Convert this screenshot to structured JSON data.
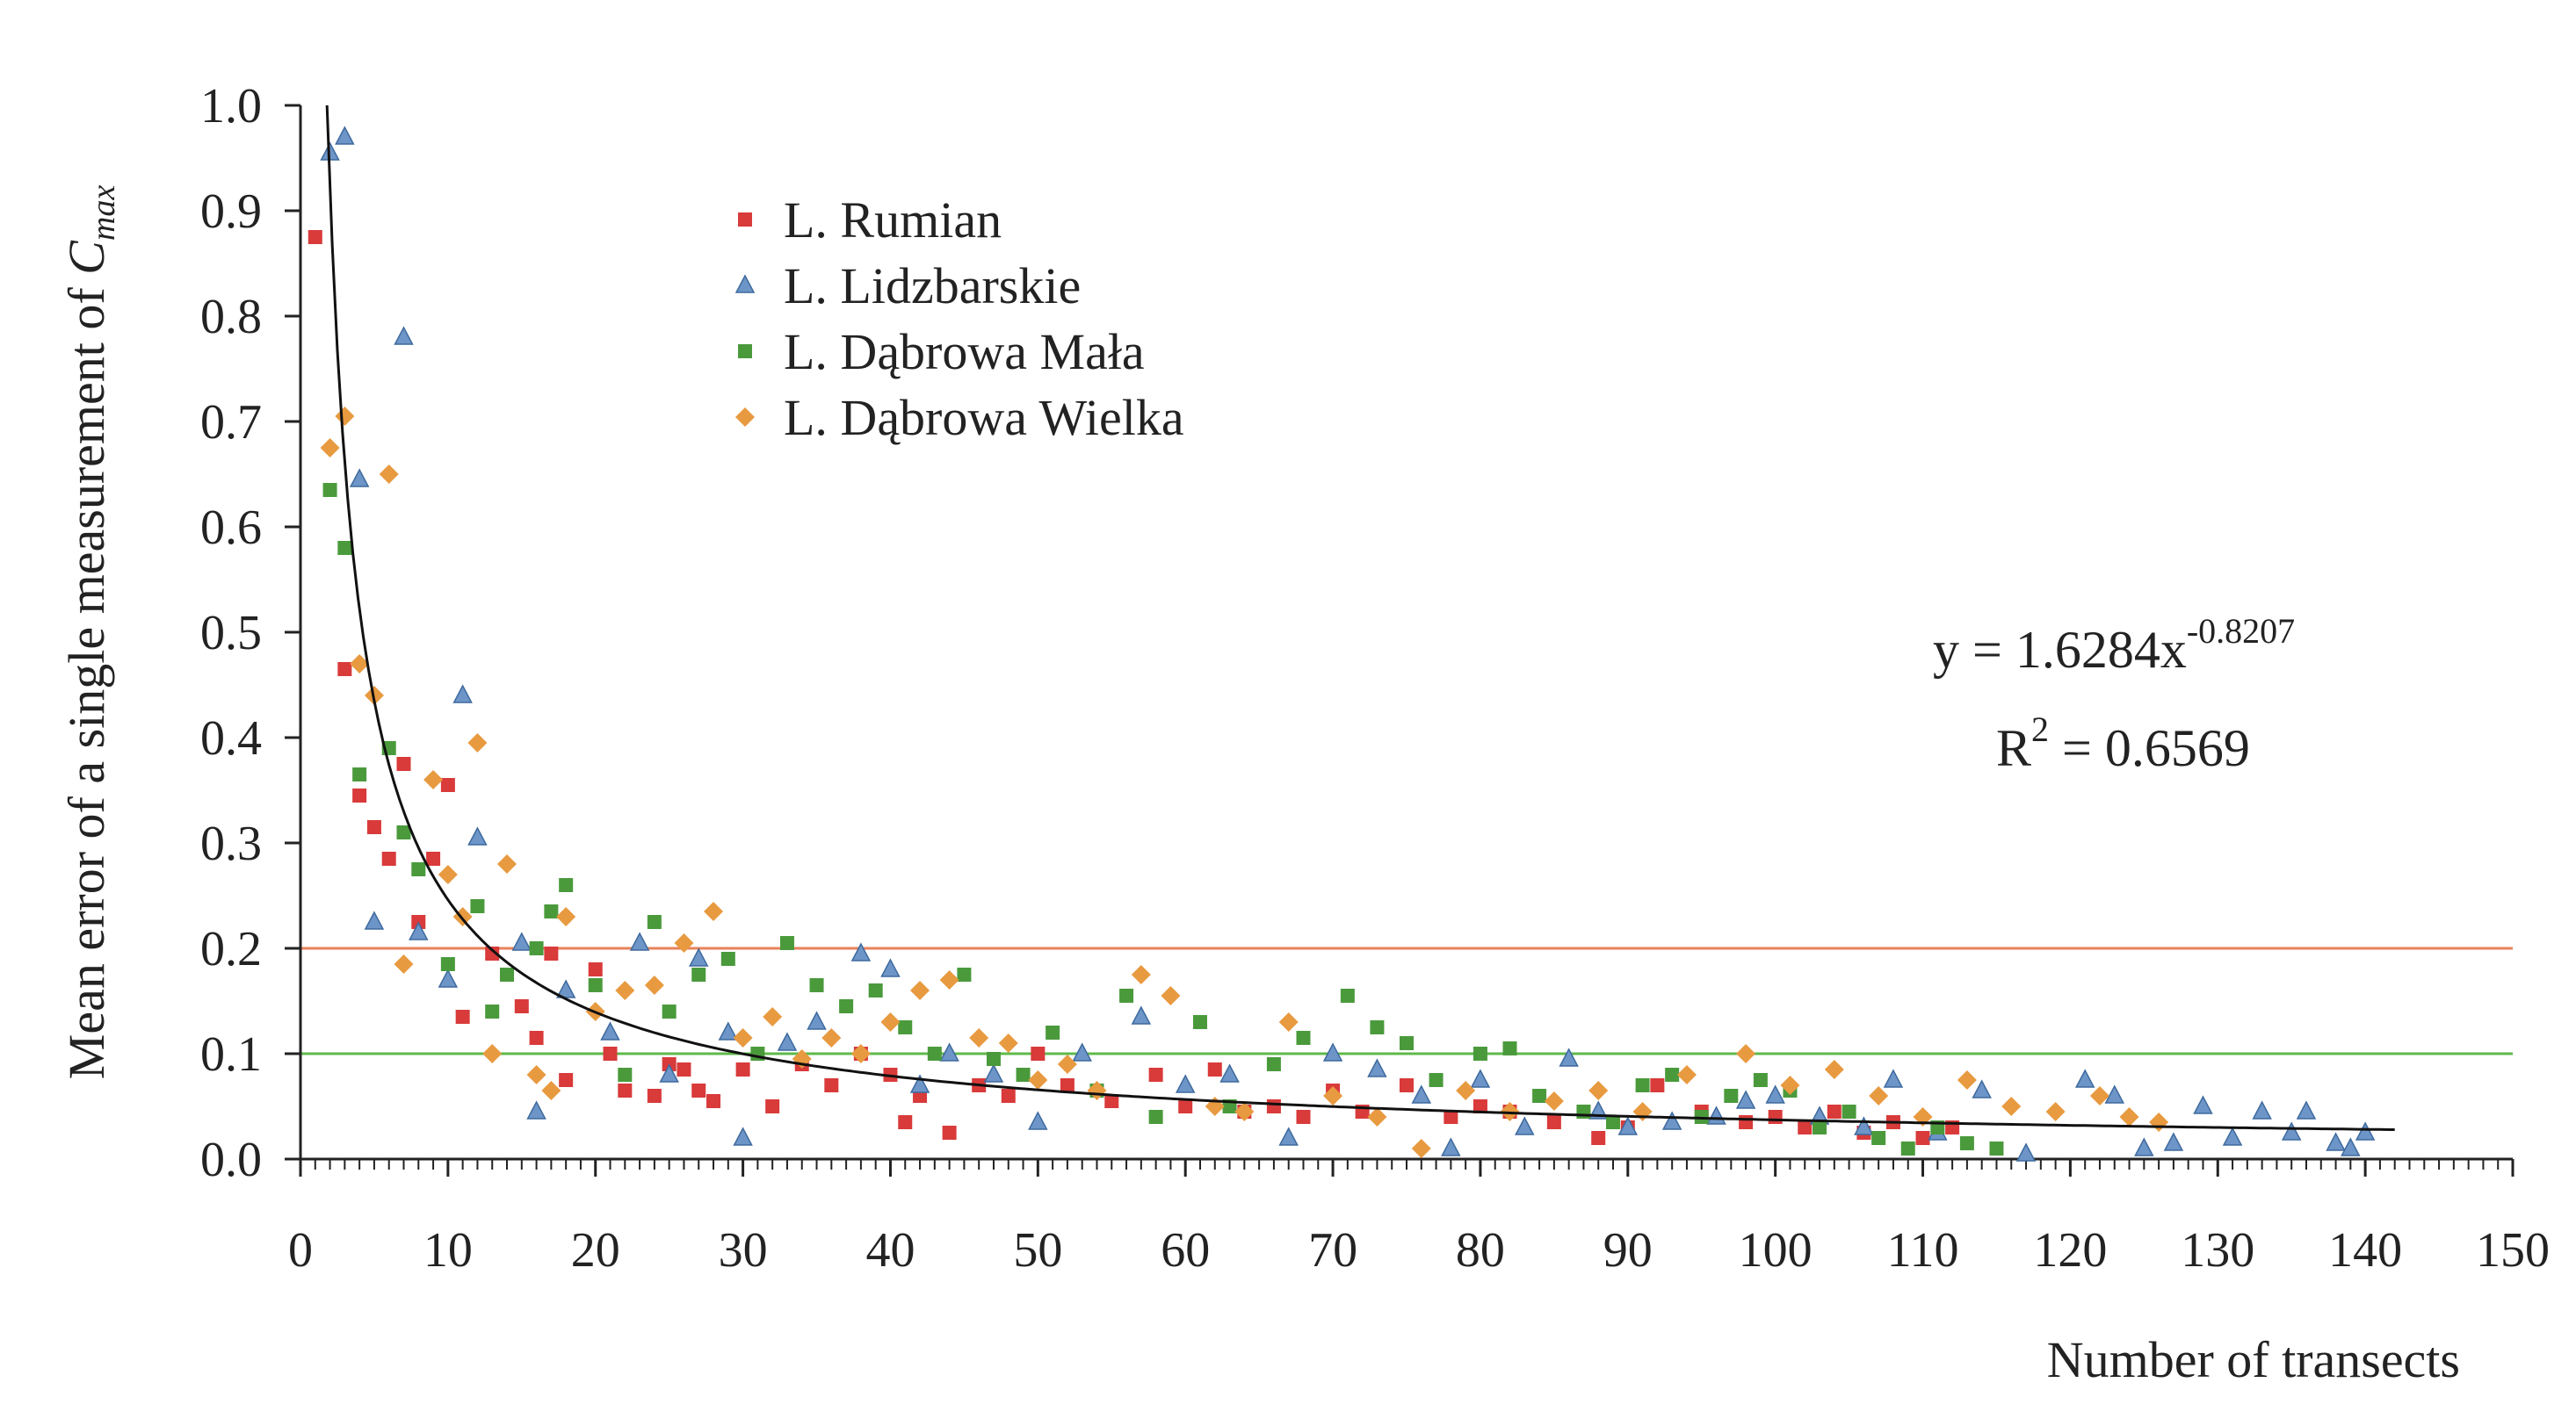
{
  "chart_data": {
    "type": "scatter",
    "title": "",
    "xlabel": "Number of transects",
    "ylabel_prefix": "Mean error of a single measurement of ",
    "ylabel_symbol": "C",
    "ylabel_subscript": "max",
    "xlim": [
      0,
      150
    ],
    "ylim": [
      0,
      1.0
    ],
    "xticks": [
      0,
      10,
      20,
      30,
      40,
      50,
      60,
      70,
      80,
      90,
      100,
      110,
      120,
      130,
      140,
      150
    ],
    "yticks": [
      "0.0",
      "0.1",
      "0.2",
      "0.3",
      "0.4",
      "0.5",
      "0.6",
      "0.7",
      "0.8",
      "0.9",
      "1.0"
    ],
    "reference_lines": [
      {
        "y": 0.2,
        "color": "#e8825a"
      },
      {
        "y": 0.1,
        "color": "#5fb84a"
      }
    ],
    "fit": {
      "coefficient": 1.6284,
      "exponent": -0.8207,
      "x_range": [
        1.8,
        142
      ],
      "color": "#111111"
    },
    "equation": {
      "lhs": "y = 1.6284x",
      "exponent": "-0.8207",
      "r_lhs": "R",
      "r_sup": "2",
      "r_rhs": " = 0.6569"
    },
    "series": [
      {
        "name": "L. Rumian",
        "marker": "square",
        "color": "#d93a3a",
        "x": [
          1,
          3,
          4,
          5,
          6,
          7,
          8,
          9,
          10,
          11,
          13,
          15,
          16,
          17,
          18,
          20,
          21,
          22,
          24,
          25,
          26,
          27,
          28,
          30,
          32,
          34,
          36,
          38,
          40,
          41,
          42,
          44,
          46,
          48,
          50,
          52,
          55,
          58,
          60,
          62,
          64,
          66,
          68,
          70,
          72,
          75,
          78,
          80,
          82,
          85,
          88,
          90,
          92,
          95,
          98,
          100,
          102,
          104,
          106,
          108,
          110,
          112
        ],
        "y": [
          0.875,
          0.465,
          0.345,
          0.315,
          0.285,
          0.375,
          0.225,
          0.285,
          0.355,
          0.135,
          0.195,
          0.145,
          0.115,
          0.195,
          0.075,
          0.18,
          0.1,
          0.065,
          0.06,
          0.09,
          0.085,
          0.065,
          0.055,
          0.085,
          0.05,
          0.09,
          0.07,
          0.1,
          0.08,
          0.035,
          0.06,
          0.025,
          0.07,
          0.06,
          0.1,
          0.07,
          0.055,
          0.08,
          0.05,
          0.085,
          0.045,
          0.05,
          0.04,
          0.065,
          0.045,
          0.07,
          0.04,
          0.05,
          0.045,
          0.035,
          0.02,
          0.03,
          0.07,
          0.045,
          0.035,
          0.04,
          0.03,
          0.045,
          0.025,
          0.035,
          0.02,
          0.03
        ]
      },
      {
        "name": "L. Lidzbarskie",
        "marker": "triangle",
        "color": "#6d95c8",
        "x": [
          2,
          3,
          4,
          5,
          7,
          8,
          10,
          11,
          12,
          15,
          16,
          18,
          21,
          23,
          25,
          27,
          29,
          30,
          33,
          35,
          38,
          40,
          42,
          44,
          47,
          50,
          53,
          57,
          60,
          63,
          67,
          70,
          73,
          76,
          78,
          80,
          83,
          86,
          88,
          90,
          93,
          96,
          98,
          100,
          103,
          106,
          108,
          111,
          114,
          117,
          121,
          123,
          125,
          127,
          129,
          131,
          133,
          135,
          136,
          138,
          139,
          140
        ],
        "y": [
          0.955,
          0.97,
          0.645,
          0.225,
          0.78,
          0.215,
          0.17,
          0.44,
          0.305,
          0.205,
          0.045,
          0.16,
          0.12,
          0.205,
          0.08,
          0.19,
          0.12,
          0.02,
          0.11,
          0.13,
          0.195,
          0.18,
          0.07,
          0.1,
          0.08,
          0.035,
          0.1,
          0.135,
          0.07,
          0.08,
          0.02,
          0.1,
          0.085,
          0.06,
          0.01,
          0.075,
          0.03,
          0.095,
          0.045,
          0.03,
          0.035,
          0.04,
          0.055,
          0.06,
          0.04,
          0.03,
          0.075,
          0.025,
          0.065,
          0.005,
          0.075,
          0.06,
          0.01,
          0.015,
          0.05,
          0.02,
          0.045,
          0.025,
          0.045,
          0.015,
          0.01,
          0.025
        ]
      },
      {
        "name": "L. Dąbrowa Mała",
        "marker": "square",
        "color": "#4a9a3c",
        "x": [
          2,
          3,
          4,
          6,
          7,
          8,
          10,
          12,
          13,
          14,
          16,
          17,
          18,
          20,
          22,
          24,
          25,
          27,
          29,
          31,
          33,
          35,
          37,
          39,
          41,
          43,
          45,
          47,
          49,
          51,
          54,
          56,
          58,
          61,
          63,
          66,
          68,
          71,
          73,
          75,
          77,
          80,
          82,
          84,
          87,
          89,
          91,
          93,
          95,
          97,
          99,
          101,
          103,
          105,
          107,
          109,
          111,
          113,
          115
        ],
        "y": [
          0.635,
          0.58,
          0.365,
          0.39,
          0.31,
          0.275,
          0.185,
          0.24,
          0.14,
          0.175,
          0.2,
          0.235,
          0.26,
          0.165,
          0.08,
          0.225,
          0.14,
          0.175,
          0.19,
          0.1,
          0.205,
          0.165,
          0.145,
          0.16,
          0.125,
          0.1,
          0.175,
          0.095,
          0.08,
          0.12,
          0.065,
          0.155,
          0.04,
          0.13,
          0.05,
          0.09,
          0.115,
          0.155,
          0.125,
          0.11,
          0.075,
          0.1,
          0.105,
          0.06,
          0.045,
          0.035,
          0.07,
          0.08,
          0.04,
          0.06,
          0.075,
          0.065,
          0.03,
          0.045,
          0.02,
          0.01,
          0.03,
          0.015,
          0.01
        ]
      },
      {
        "name": "L. Dąbrowa Wielka",
        "marker": "diamond",
        "color": "#e89a40",
        "x": [
          2,
          3,
          4,
          5,
          6,
          7,
          9,
          10,
          11,
          12,
          13,
          14,
          16,
          17,
          18,
          20,
          22,
          24,
          26,
          28,
          30,
          32,
          34,
          36,
          38,
          40,
          42,
          44,
          46,
          48,
          50,
          52,
          54,
          57,
          59,
          62,
          64,
          67,
          70,
          73,
          76,
          79,
          82,
          85,
          88,
          91,
          94,
          98,
          101,
          104,
          107,
          110,
          113,
          116,
          119,
          122,
          124,
          126
        ],
        "y": [
          0.675,
          0.705,
          0.47,
          0.44,
          0.65,
          0.185,
          0.36,
          0.27,
          0.23,
          0.395,
          0.1,
          0.28,
          0.08,
          0.065,
          0.23,
          0.14,
          0.16,
          0.165,
          0.205,
          0.235,
          0.115,
          0.135,
          0.095,
          0.115,
          0.1,
          0.13,
          0.16,
          0.17,
          0.115,
          0.11,
          0.075,
          0.09,
          0.065,
          0.175,
          0.155,
          0.05,
          0.045,
          0.13,
          0.06,
          0.04,
          0.01,
          0.065,
          0.045,
          0.055,
          0.065,
          0.045,
          0.08,
          0.1,
          0.07,
          0.085,
          0.06,
          0.04,
          0.075,
          0.05,
          0.045,
          0.06,
          0.04,
          0.035
        ]
      }
    ]
  }
}
